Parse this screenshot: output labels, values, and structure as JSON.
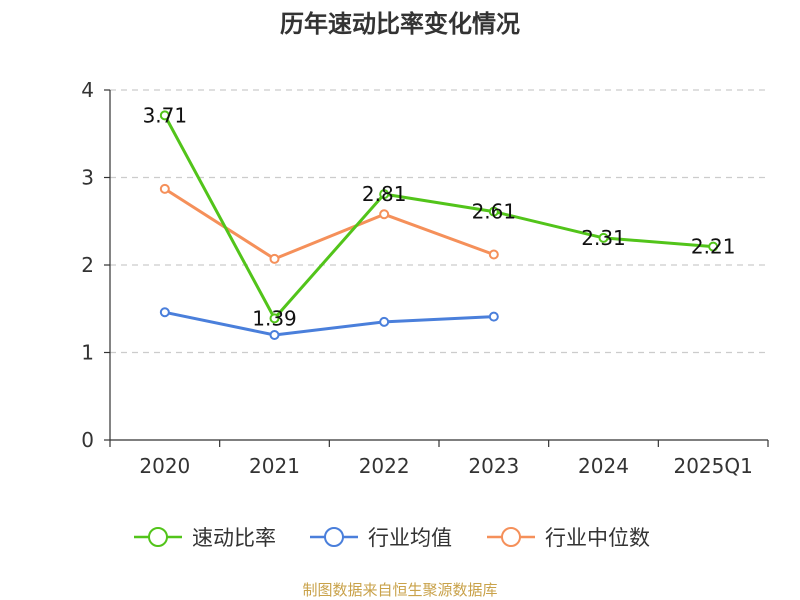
{
  "chart_data": {
    "type": "line",
    "title": "历年速动比率变化情况",
    "categories": [
      "2020",
      "2021",
      "2022",
      "2023",
      "2024",
      "2025Q1"
    ],
    "ylim": [
      0,
      4
    ],
    "yticks": [
      "0",
      "1",
      "2",
      "3",
      "4"
    ],
    "grid": true,
    "legend_position": "bottom",
    "series": [
      {
        "name": "速动比率",
        "color": "#52c41a",
        "values": [
          3.71,
          1.39,
          2.81,
          2.61,
          2.31,
          2.21
        ],
        "labels": [
          "3.71",
          "1.39",
          "2.81",
          "2.61",
          "2.31",
          "2.21"
        ]
      },
      {
        "name": "行业均值",
        "color": "#4a7fdb",
        "values": [
          1.46,
          1.2,
          1.35,
          1.41,
          null,
          null
        ]
      },
      {
        "name": "行业中位数",
        "color": "#f5905a",
        "values": [
          2.87,
          2.07,
          2.58,
          2.12,
          null,
          null
        ]
      }
    ]
  },
  "footer": {
    "source": "制图数据来自恒生聚源数据库"
  }
}
